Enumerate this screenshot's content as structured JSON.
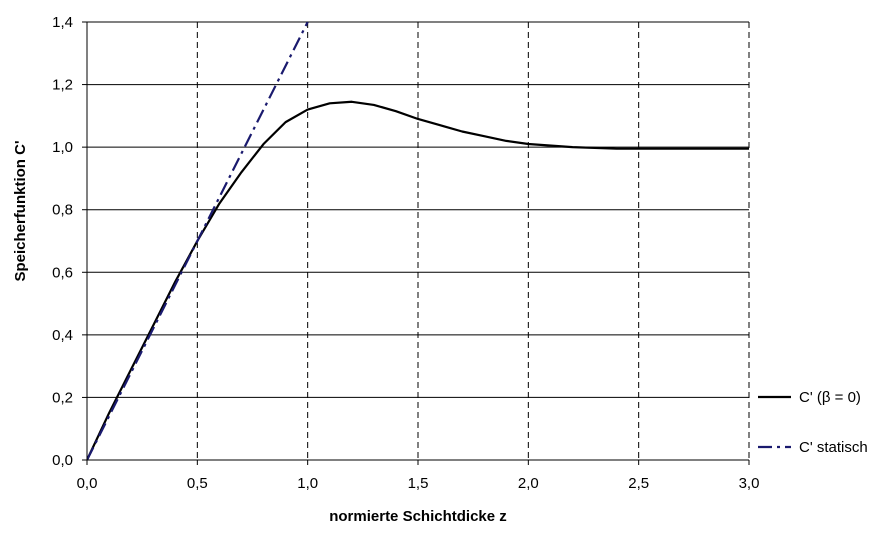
{
  "chart_data": {
    "type": "line",
    "title": "",
    "xlabel": "normierte Schichtdicke z",
    "ylabel": "Speicherfunktion C'",
    "xlim": [
      0,
      3.0
    ],
    "ylim": [
      0,
      1.4
    ],
    "xticks": [
      0,
      0.5,
      1.0,
      1.5,
      2.0,
      2.5,
      3.0
    ],
    "yticks": [
      0,
      0.2,
      0.4,
      0.6,
      0.8,
      1.0,
      1.2,
      1.4
    ],
    "xtick_labels": [
      "0,0",
      "0,5",
      "1,0",
      "1,5",
      "2,0",
      "2,5",
      "3,0"
    ],
    "ytick_labels": [
      "0,0",
      "0,2",
      "0,4",
      "0,6",
      "0,8",
      "1,0",
      "1,2",
      "1,4"
    ],
    "grid": {
      "x": "dashed",
      "y": "solid"
    },
    "legend_position": "right",
    "series": [
      {
        "name": "C' (β = 0)",
        "style": "solid",
        "color": "#000000",
        "x": [
          0,
          0.1,
          0.2,
          0.3,
          0.4,
          0.5,
          0.6,
          0.7,
          0.8,
          0.9,
          1.0,
          1.1,
          1.2,
          1.3,
          1.4,
          1.5,
          1.6,
          1.7,
          1.8,
          1.9,
          2.0,
          2.2,
          2.4,
          2.5,
          2.7,
          3.0
        ],
        "y": [
          0,
          0.15,
          0.29,
          0.43,
          0.57,
          0.7,
          0.82,
          0.92,
          1.01,
          1.08,
          1.12,
          1.14,
          1.145,
          1.135,
          1.115,
          1.09,
          1.07,
          1.05,
          1.035,
          1.02,
          1.01,
          1.0,
          0.995,
          0.995,
          0.995,
          0.995
        ]
      },
      {
        "name": "C' statisch",
        "style": "dash-dot",
        "color": "#1a1a6e",
        "x": [
          0,
          1.0
        ],
        "y": [
          0,
          1.4
        ]
      }
    ]
  }
}
